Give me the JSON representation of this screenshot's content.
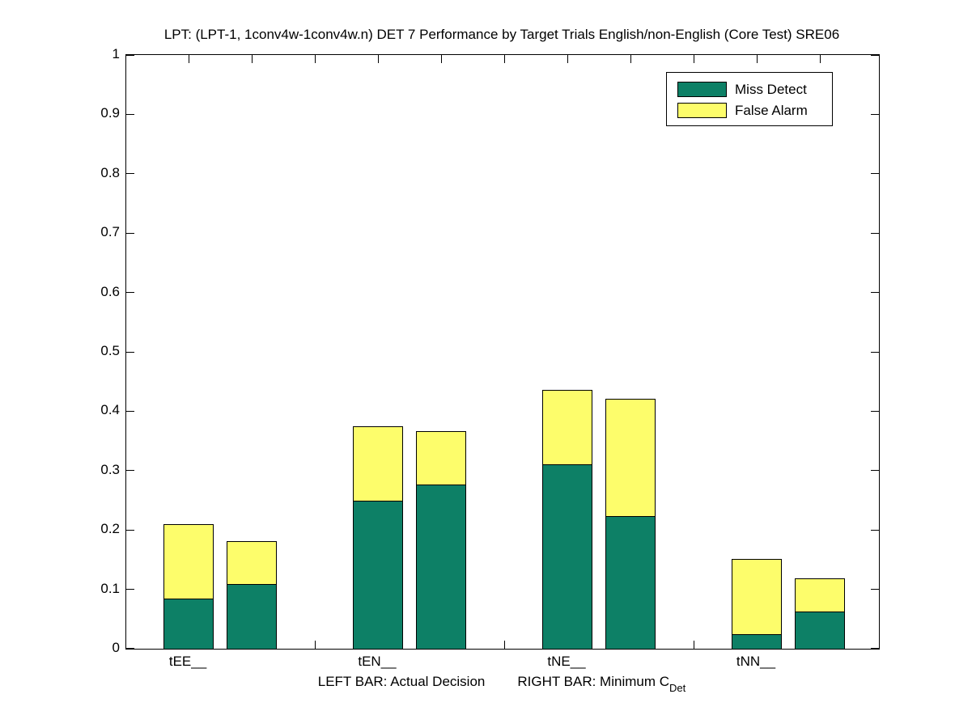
{
  "chart_data": {
    "type": "bar",
    "stacked": true,
    "title": "LPT: (LPT-1, 1conv4w-1conv4w.n) DET 7 Performance by Target Trials English/non-English (Core Test) SRE06",
    "xlabel": "LEFT BAR: Actual Decision    RIGHT BAR: Minimum C_Det",
    "xlabel_parts": {
      "left": "LEFT BAR: Actual Decision",
      "right": "RIGHT BAR: Minimum C",
      "subscript": "Det"
    },
    "categories": [
      "tEE__",
      "tEN__",
      "tNE__",
      "tNN__"
    ],
    "bar_pair_meaning": {
      "left": "Actual Decision",
      "right": "Minimum C_Det"
    },
    "legend": {
      "position": "top-right",
      "entries": [
        "Miss Detect",
        "False Alarm"
      ]
    },
    "colors": {
      "miss_detect": "#0d8066",
      "false_alarm": "#fdfd6b",
      "axis": "#000000",
      "background": "#ffffff"
    },
    "ylim": [
      0,
      1
    ],
    "y_tick_labels": [
      "0",
      "0.1",
      "0.2",
      "0.3",
      "0.4",
      "0.5",
      "0.6",
      "0.7",
      "0.8",
      "0.9",
      "1"
    ],
    "grid": false,
    "series": [
      {
        "name": "Miss Detect",
        "bar": "left",
        "values": [
          0.085,
          0.249,
          0.31,
          0.025
        ]
      },
      {
        "name": "False Alarm",
        "bar": "left",
        "values": [
          0.125,
          0.125,
          0.125,
          0.127
        ]
      },
      {
        "name": "Miss Detect",
        "bar": "right",
        "values": [
          0.109,
          0.277,
          0.224,
          0.062
        ]
      },
      {
        "name": "False Alarm",
        "bar": "right",
        "values": [
          0.072,
          0.09,
          0.198,
          0.056
        ]
      }
    ],
    "bar_totals": {
      "left": [
        0.21,
        0.374,
        0.435,
        0.152
      ],
      "right": [
        0.181,
        0.367,
        0.422,
        0.118
      ]
    }
  }
}
